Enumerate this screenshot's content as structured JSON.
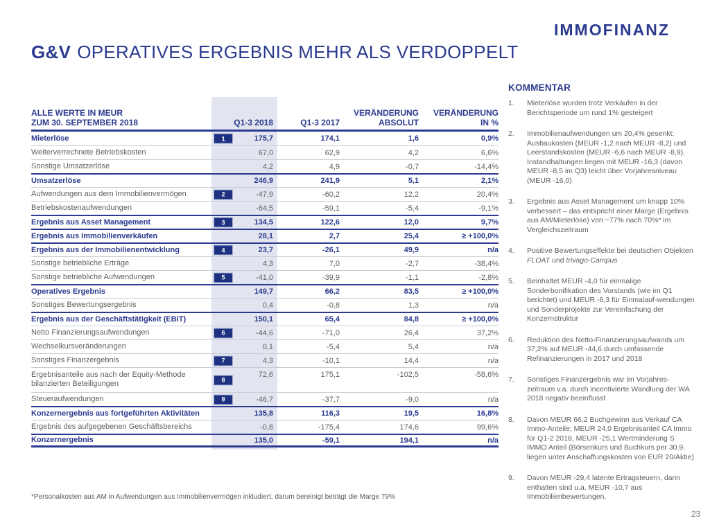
{
  "colors": {
    "navy": "#2b3a8f",
    "badge_navy": "#1e3181",
    "text_gray": "#5f5f5f",
    "column_highlight": "#e2e5ef",
    "row_line": "#c9ccd6"
  },
  "brand": {
    "logo": "IMMOFINANZ"
  },
  "slide": {
    "title_prefix": "G&V",
    "title_rest": "OPERATIVES ERGEBNIS MEHR ALS VERDOPPELT",
    "footnote": "*Personalkosten aus AM in Aufwendungen aus Immobilienvermögen inkludiert, darum bereinigt beträgt die Marge 79%",
    "page_number": "23"
  },
  "table": {
    "header": {
      "label": "ALLE WERTE IN MEUR\nZUM 30. SEPTEMBER 2018",
      "col_2018": "Q1-3 2018",
      "col_2017": "Q1-3 2017",
      "col_change_abs": "VERÄNDERUNG\nABSOLUT",
      "col_change_pct": "VERÄNDERUNG\nIN %"
    },
    "rows": [
      {
        "label": "Mieterlöse",
        "badge": "1",
        "q1_3_2018": "175,7",
        "q1_3_2017": "174,1",
        "change_absolut": "1,6",
        "change_percent": "0,9%",
        "emphasis": true
      },
      {
        "label": "Weiterverrechnete Betriebskosten",
        "q1_3_2018": "67,0",
        "q1_3_2017": "62,9",
        "change_absolut": "4,2",
        "change_percent": "6,6%"
      },
      {
        "label": "Sonstige Umsatzerlöse",
        "q1_3_2018": "4,2",
        "q1_3_2017": "4,9",
        "change_absolut": "-0,7",
        "change_percent": "-14,4%"
      },
      {
        "label": "Umsatzerlöse",
        "q1_3_2018": "246,9",
        "q1_3_2017": "241,9",
        "change_absolut": "5,1",
        "change_percent": "2,1%",
        "emphasis": true
      },
      {
        "label": "Aufwendungen aus dem Immobilienvermögen",
        "badge": "2",
        "q1_3_2018": "-47,9",
        "q1_3_2017": "-60,2",
        "change_absolut": "12,2",
        "change_percent": "20,4%"
      },
      {
        "label": "Betriebskostenaufwendungen",
        "q1_3_2018": "-64,5",
        "q1_3_2017": "-59,1",
        "change_absolut": "-5,4",
        "change_percent": "-9,1%"
      },
      {
        "label": "Ergebnis aus Asset Management",
        "badge": "3",
        "q1_3_2018": "134,5",
        "q1_3_2017": "122,6",
        "change_absolut": "12,0",
        "change_percent": "9,7%",
        "emphasis": true
      },
      {
        "label": "Ergebnis aus Immobilienverkäufen",
        "q1_3_2018": "28,1",
        "q1_3_2017": "2,7",
        "change_absolut": "25,4",
        "change_percent": "≥ +100,0%",
        "emphasis": true
      },
      {
        "label": "Ergebnis aus der Immobilienentwicklung",
        "badge": "4",
        "q1_3_2018": "23,7",
        "q1_3_2017": "-26,1",
        "change_absolut": "49,9",
        "change_percent": "n/a",
        "emphasis": true
      },
      {
        "label": "Sonstige betriebliche Erträge",
        "q1_3_2018": "4,3",
        "q1_3_2017": "7,0",
        "change_absolut": "-2,7",
        "change_percent": "-38,4%"
      },
      {
        "label": "Sonstige betriebliche Aufwendungen",
        "badge": "5",
        "q1_3_2018": "-41,0",
        "q1_3_2017": "-39,9",
        "change_absolut": "-1,1",
        "change_percent": "-2,8%"
      },
      {
        "label": "Operatives Ergebnis",
        "q1_3_2018": "149,7",
        "q1_3_2017": "66,2",
        "change_absolut": "83,5",
        "change_percent": "≥ +100,0%",
        "emphasis": true
      },
      {
        "label": "Sonstiges Bewertungsergebnis",
        "q1_3_2018": "0,4",
        "q1_3_2017": "-0,8",
        "change_absolut": "1,3",
        "change_percent": "n/a"
      },
      {
        "label": "Ergebnis aus der Geschäftstätigkeit (EBIT)",
        "q1_3_2018": "150,1",
        "q1_3_2017": "65,4",
        "change_absolut": "84,8",
        "change_percent": "≥ +100,0%",
        "emphasis": true
      },
      {
        "label": "Netto Finanzierungsaufwendungen",
        "badge": "6",
        "q1_3_2018": "-44,6",
        "q1_3_2017": "-71,0",
        "change_absolut": "26,4",
        "change_percent": "37,2%"
      },
      {
        "label": "Wechselkursveränderungen",
        "q1_3_2018": "0,1",
        "q1_3_2017": "-5,4",
        "change_absolut": "5,4",
        "change_percent": "n/a"
      },
      {
        "label": "Sonstiges Finanzergebnis",
        "badge": "7",
        "q1_3_2018": "4,3",
        "q1_3_2017": "-10,1",
        "change_absolut": "14,4",
        "change_percent": "n/a"
      },
      {
        "label": "Ergebnisanteile aus nach der Equity-Methode bilanzierten Beteiligungen",
        "badge": "8",
        "q1_3_2018": "72,6",
        "q1_3_2017": "175,1",
        "change_absolut": "-102,5",
        "change_percent": "-58,6%",
        "two_line": true
      },
      {
        "label": "Steueraufwendungen",
        "badge": "9",
        "q1_3_2018": "-46,7",
        "q1_3_2017": "-37,7",
        "change_absolut": "-9,0",
        "change_percent": "n/a"
      },
      {
        "label": "Konzernergebnis aus fortgeführten Aktivitäten",
        "q1_3_2018": "135,8",
        "q1_3_2017": "116,3",
        "change_absolut": "19,5",
        "change_percent": "16,8%",
        "emphasis": true
      },
      {
        "label": "Ergebnis des aufgegebenen Geschäftsbereichs",
        "q1_3_2018": "-0,8",
        "q1_3_2017": "-175,4",
        "change_absolut": "174,6",
        "change_percent": "99,6%"
      },
      {
        "label": "Konzernergebnis",
        "q1_3_2018": "135,0",
        "q1_3_2017": "-59,1",
        "change_absolut": "194,1",
        "change_percent": "n/a",
        "emphasis": true
      }
    ]
  },
  "kommentar": {
    "title": "KOMMENTAR",
    "items": [
      {
        "num": "1.",
        "text": "Mieterlöse wurden trotz Verkäufen in der Berichtsperiode um rund 1% gesteigert"
      },
      {
        "num": "2.",
        "text": "Immobilienaufwendungen um 20,4% gesenkt: Ausbaukosten (MEUR -1,2 nach MEUR -8,2) und Leerstandskosten (MEUR -6,6 nach MEUR -8,9). Instandhaltungen liegen mit MEUR -16,3 (davon MEUR -8,5 im Q3) leicht über Vorjahresniveau (MEUR -16,0)"
      },
      {
        "num": "3.",
        "text": "Ergebnis aus Asset Management um knapp 10% verbessert – das entspricht einer Marge (Ergebnis aus AM/Mieterlöse) von ~77% nach 70%* im Vergleichszeitraum"
      },
      {
        "num": "4.",
        "text": "Positive Bewertungseffekte bei deutschen Objekten FLOAT und trivago-Campus",
        "italics": [
          "FLOAT",
          "trivago-Campus"
        ]
      },
      {
        "num": "5.",
        "text": "Beinhaltet MEUR -4,0 für einmalige Sonderbonifikation des Vorstands (wie im Q1 berichtet) und MEUR -6,3 für Einmalauf-wendungen und Sonderprojekte zur Vereinfachung der Konzernstruktur"
      },
      {
        "num": "6.",
        "text": "Reduktion des Netto-Finanzierungsaufwands um 37,2% auf MEUR -44,6 durch umfassende Refinanzierungen in 2017 und 2018"
      },
      {
        "num": "7.",
        "text": "Sonstiges Finanzergebnis war im Vorjahres-zeitraum v.a. durch incentivierte Wandlung der WA 2018 negativ beeinflusst"
      },
      {
        "num": "8.",
        "text": "Davon MEUR 66,2 Buchgewinn aus Verkauf CA Immo-Anteile; MEUR 24,0 Ergebnisanteil CA Immo für Q1-2 2018, MEUR -25,1 Wertminderung S IMMO Anteil (Börsenkurs und Buchkurs per 30.9. liegen unter Anschaffungskosten von EUR 20/Aktie)"
      },
      {
        "num": "9.",
        "text": "Davon MEUR -29,4 latente Ertragsteuern, darin enthalten sind u.a. MEUR -10,7 aus Immobilienbewertungen."
      }
    ]
  }
}
